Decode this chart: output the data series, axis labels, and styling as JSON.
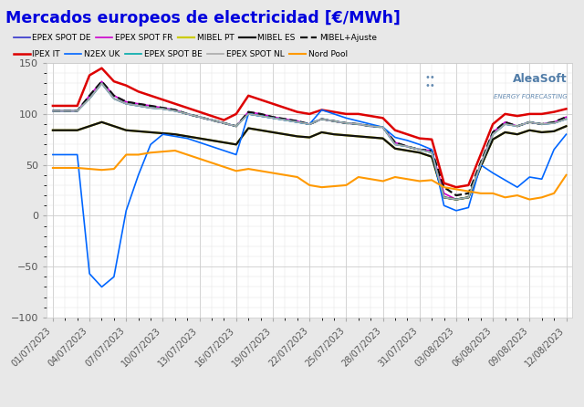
{
  "title": "Mercados europeos de electricidad [€/MWh]",
  "title_color": "#0000dd",
  "bg_color": "#e8e8e8",
  "plot_bg": "#ffffff",
  "ylim": [
    -100,
    150
  ],
  "yticks": [
    -100,
    -50,
    0,
    50,
    100,
    150
  ],
  "x_labels": [
    "01/07/2023",
    "04/07/2023",
    "07/07/2023",
    "10/07/2023",
    "13/07/2023",
    "16/07/2023",
    "19/07/2023",
    "22/07/2023",
    "25/07/2023",
    "28/07/2023",
    "31/07/2023",
    "03/08/2023",
    "06/08/2023",
    "09/08/2023",
    "12/08/2023"
  ],
  "n_points": 43,
  "series": [
    {
      "name": "EPEX SPOT DE",
      "color": "#3333cc",
      "ls": "-",
      "lw": 1.2,
      "values": [
        103,
        103,
        103,
        115,
        130,
        115,
        110,
        108,
        106,
        105,
        103,
        100,
        97,
        94,
        91,
        88,
        100,
        98,
        96,
        94,
        92,
        90,
        95,
        93,
        91,
        90,
        88,
        87,
        70,
        68,
        65,
        62,
        18,
        16,
        18,
        50,
        80,
        90,
        88,
        92,
        90,
        91,
        95
      ]
    },
    {
      "name": "EPEX SPOT FR",
      "color": "#cc00cc",
      "ls": "-",
      "lw": 1.2,
      "values": [
        103,
        103,
        103,
        118,
        132,
        118,
        112,
        110,
        108,
        106,
        104,
        100,
        97,
        94,
        91,
        88,
        102,
        100,
        97,
        95,
        93,
        90,
        95,
        93,
        91,
        90,
        88,
        87,
        72,
        68,
        65,
        64,
        22,
        16,
        18,
        50,
        82,
        92,
        88,
        92,
        90,
        92,
        97
      ]
    },
    {
      "name": "MIBEL PT",
      "color": "#cccc00",
      "ls": "-",
      "lw": 1.6,
      "values": [
        84,
        84,
        84,
        88,
        92,
        88,
        84,
        83,
        82,
        81,
        80,
        78,
        76,
        74,
        72,
        70,
        86,
        84,
        82,
        80,
        78,
        77,
        82,
        80,
        79,
        78,
        77,
        76,
        66,
        64,
        62,
        58,
        18,
        16,
        18,
        48,
        75,
        82,
        80,
        84,
        82,
        83,
        88
      ]
    },
    {
      "name": "MIBEL ES",
      "color": "#111111",
      "ls": "-",
      "lw": 1.6,
      "values": [
        84,
        84,
        84,
        88,
        92,
        88,
        84,
        83,
        82,
        81,
        80,
        78,
        76,
        74,
        72,
        70,
        86,
        84,
        82,
        80,
        78,
        77,
        82,
        80,
        79,
        78,
        77,
        76,
        66,
        64,
        62,
        58,
        18,
        16,
        18,
        48,
        75,
        82,
        80,
        84,
        82,
        83,
        88
      ]
    },
    {
      "name": "MIBEL+Ajuste",
      "color": "#111111",
      "ls": "--",
      "lw": 1.6,
      "values": [
        103,
        103,
        103,
        118,
        132,
        118,
        112,
        110,
        108,
        106,
        104,
        100,
        97,
        94,
        91,
        88,
        102,
        100,
        97,
        95,
        93,
        90,
        95,
        93,
        91,
        90,
        88,
        87,
        72,
        68,
        65,
        64,
        28,
        20,
        22,
        52,
        82,
        92,
        88,
        92,
        90,
        92,
        97
      ]
    },
    {
      "name": "IPEX IT",
      "color": "#dd0000",
      "ls": "-",
      "lw": 1.8,
      "values": [
        108,
        108,
        108,
        138,
        145,
        132,
        128,
        122,
        118,
        114,
        110,
        106,
        102,
        98,
        94,
        100,
        118,
        114,
        110,
        106,
        102,
        100,
        104,
        102,
        100,
        100,
        98,
        96,
        84,
        80,
        76,
        75,
        32,
        28,
        30,
        60,
        90,
        100,
        98,
        100,
        100,
        102,
        105
      ]
    },
    {
      "name": "N2EX UK",
      "color": "#0066ff",
      "ls": "-",
      "lw": 1.2,
      "values": [
        60,
        60,
        60,
        -57,
        -70,
        -60,
        5,
        40,
        70,
        80,
        78,
        76,
        72,
        68,
        64,
        60,
        100,
        98,
        96,
        94,
        92,
        90,
        104,
        100,
        96,
        93,
        90,
        87,
        77,
        74,
        70,
        65,
        10,
        5,
        8,
        50,
        42,
        35,
        28,
        38,
        36,
        65,
        80
      ]
    },
    {
      "name": "EPEX SPOT BE",
      "color": "#00aaaa",
      "ls": "-",
      "lw": 1.2,
      "values": [
        103,
        103,
        103,
        115,
        130,
        115,
        110,
        108,
        106,
        105,
        103,
        100,
        97,
        94,
        91,
        88,
        100,
        98,
        96,
        94,
        92,
        90,
        95,
        93,
        91,
        90,
        88,
        87,
        70,
        68,
        65,
        62,
        18,
        16,
        18,
        50,
        80,
        90,
        88,
        92,
        90,
        91,
        95
      ]
    },
    {
      "name": "EPEX SPOT NL",
      "color": "#aaaaaa",
      "ls": "-",
      "lw": 1.2,
      "values": [
        103,
        103,
        103,
        115,
        130,
        115,
        110,
        108,
        106,
        105,
        103,
        100,
        97,
        94,
        91,
        88,
        100,
        98,
        96,
        94,
        92,
        90,
        95,
        93,
        91,
        90,
        88,
        87,
        70,
        68,
        65,
        62,
        18,
        16,
        18,
        50,
        80,
        90,
        88,
        92,
        90,
        91,
        95
      ]
    },
    {
      "name": "Nord Pool",
      "color": "#ff9900",
      "ls": "-",
      "lw": 1.5,
      "values": [
        47,
        47,
        47,
        46,
        45,
        46,
        60,
        60,
        62,
        63,
        64,
        60,
        56,
        52,
        48,
        44,
        46,
        44,
        42,
        40,
        38,
        30,
        28,
        29,
        30,
        38,
        36,
        34,
        38,
        36,
        34,
        35,
        28,
        26,
        24,
        22,
        22,
        18,
        20,
        16,
        18,
        22,
        40
      ]
    }
  ],
  "legend_row1": [
    "EPEX SPOT DE",
    "EPEX SPOT FR",
    "MIBEL PT",
    "MIBEL ES",
    "MIBEL+Ajuste"
  ],
  "legend_row2": [
    "IPEX IT",
    "N2EX UK",
    "EPEX SPOT BE",
    "EPEX SPOT NL",
    "Nord Pool"
  ],
  "xtick_positions": [
    0,
    3,
    6,
    9,
    12,
    15,
    18,
    21,
    24,
    27,
    30,
    33,
    36,
    39,
    42
  ]
}
